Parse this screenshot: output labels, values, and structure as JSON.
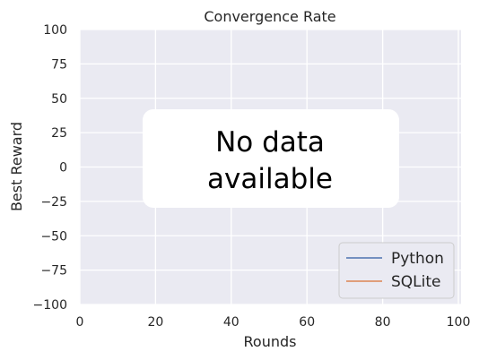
{
  "chart_data": {
    "type": "line",
    "title": "Convergence Rate",
    "xlabel": "Rounds",
    "ylabel": "Best Reward",
    "xlim": [
      0,
      100
    ],
    "ylim": [
      -100,
      100
    ],
    "x_ticks": [
      "0",
      "20",
      "40",
      "60",
      "80",
      "100"
    ],
    "y_ticks": [
      "100",
      "75",
      "50",
      "25",
      "0",
      "−25",
      "−50",
      "−75",
      "−100"
    ],
    "grid": true,
    "legend_position": "bottom-right",
    "series": [
      {
        "name": "Python",
        "color": "#4c72b0",
        "x": [],
        "y": []
      },
      {
        "name": "SQLite",
        "color": "#dd8452",
        "x": [],
        "y": []
      }
    ],
    "overlay_message": [
      "No data",
      "available"
    ],
    "colors": {
      "plot_background": "#eaeaf2",
      "grid": "#ffffff"
    }
  }
}
